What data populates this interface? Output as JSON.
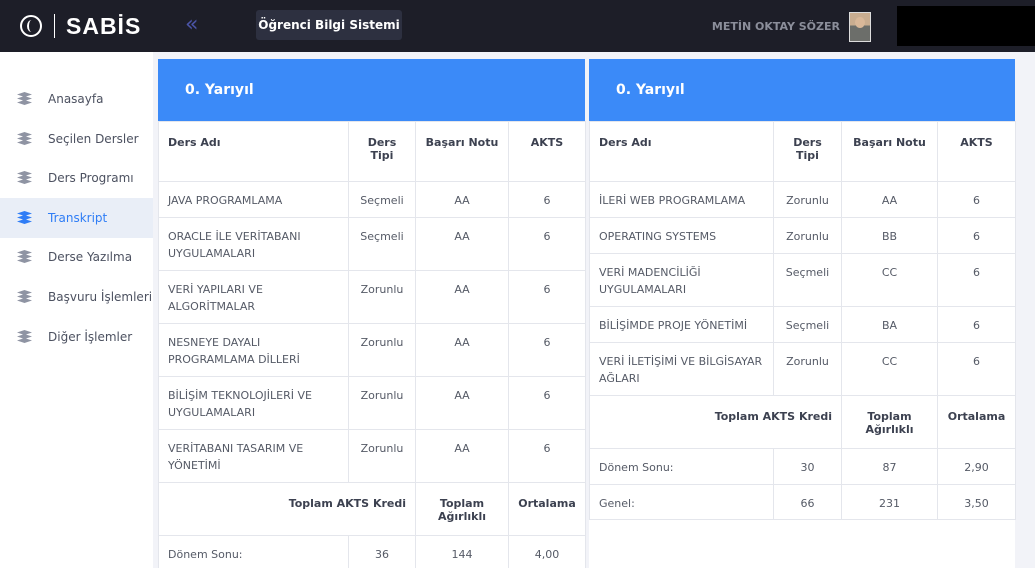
{
  "app": {
    "logo_text": "SABİS",
    "collapse_icon": "«",
    "system_button": "Öğrenci Bilgi Sistemi",
    "user_name": "METİN OKTAY SÖZER"
  },
  "sidebar": {
    "items": [
      {
        "label": "Anasayfa"
      },
      {
        "label": "Seçilen Dersler"
      },
      {
        "label": "Ders Programı"
      },
      {
        "label": "Transkript"
      },
      {
        "label": "Derse Yazılma"
      },
      {
        "label": "Başvuru İşlemleri"
      },
      {
        "label": "Diğer İşlemler"
      }
    ],
    "active_index": 3
  },
  "left_panel": {
    "title": "0. Yarıyıl",
    "headers": {
      "course": "Ders Adı",
      "type": "Ders Tipi",
      "grade": "Başarı Notu",
      "akts": "AKTS"
    },
    "courses": [
      {
        "name": "JAVA PROGRAMLAMA",
        "type": "Seçmeli",
        "grade": "AA",
        "akts": "6"
      },
      {
        "name": "ORACLE İLE VERİTABANI UYGULAMALARI",
        "type": "Seçmeli",
        "grade": "AA",
        "akts": "6"
      },
      {
        "name": "VERİ YAPILARI VE ALGORİTMALAR",
        "type": "Zorunlu",
        "grade": "AA",
        "akts": "6"
      },
      {
        "name": "NESNEYE DAYALI PROGRAMLAMA DİLLERİ",
        "type": "Zorunlu",
        "grade": "AA",
        "akts": "6"
      },
      {
        "name": "BİLİŞİM TEKNOLOJİLERİ VE UYGULAMALARI",
        "type": "Zorunlu",
        "grade": "AA",
        "akts": "6"
      },
      {
        "name": "VERİTABANI TASARIM VE YÖNETİMİ",
        "type": "Zorunlu",
        "grade": "AA",
        "akts": "6"
      }
    ],
    "summary_headers": {
      "credit": "Toplam AKTS Kredi",
      "weight": "Toplam Ağırlıklı",
      "average": "Ortalama"
    },
    "summary_rows": [
      {
        "label": "Dönem Sonu:",
        "credit": "36",
        "weight": "144",
        "average": "4,00"
      }
    ]
  },
  "right_panel": {
    "title": "0. Yarıyıl",
    "headers": {
      "course": "Ders Adı",
      "type": "Ders Tipi",
      "grade": "Başarı Notu",
      "akts": "AKTS"
    },
    "courses": [
      {
        "name": "İLERİ WEB PROGRAMLAMA",
        "type": "Zorunlu",
        "grade": "AA",
        "akts": "6"
      },
      {
        "name": "OPERATING SYSTEMS",
        "type": "Zorunlu",
        "grade": "BB",
        "akts": "6"
      },
      {
        "name": "VERİ MADENCİLİĞİ UYGULAMALARI",
        "type": "Seçmeli",
        "grade": "CC",
        "akts": "6"
      },
      {
        "name": "BİLİŞİMDE PROJE YÖNETİMİ",
        "type": "Seçmeli",
        "grade": "BA",
        "akts": "6"
      },
      {
        "name": "VERİ İLETİŞİMİ VE BİLGİSAYAR AĞLARI",
        "type": "Zorunlu",
        "grade": "CC",
        "akts": "6"
      }
    ],
    "summary_headers": {
      "credit": "Toplam AKTS Kredi",
      "weight": "Toplam Ağırlıklı",
      "average": "Ortalama"
    },
    "summary_rows": [
      {
        "label": "Dönem Sonu:",
        "credit": "30",
        "weight": "87",
        "average": "2,90"
      },
      {
        "label": "Genel:",
        "credit": "66",
        "weight": "231",
        "average": "3,50"
      }
    ]
  },
  "colors": {
    "accent": "#3b8af8",
    "topbar": "#1d1e28",
    "active_nav": "#2f7df6"
  }
}
